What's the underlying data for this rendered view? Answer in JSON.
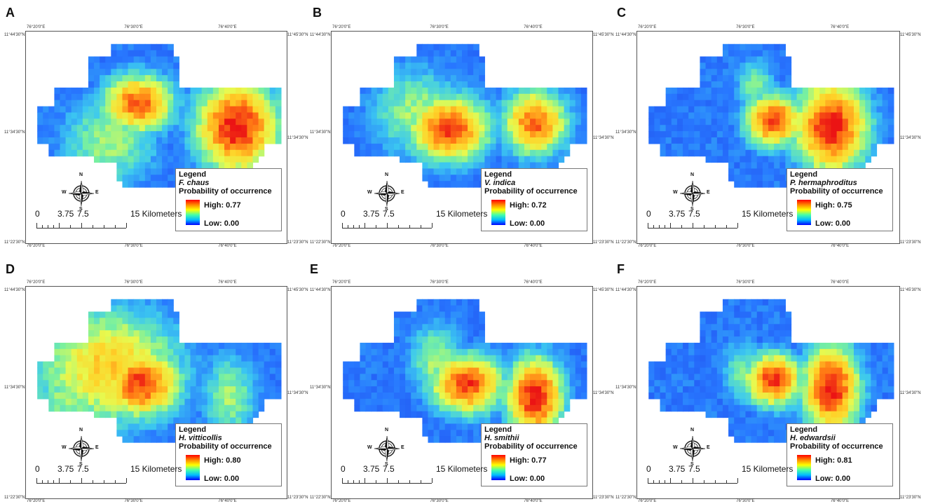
{
  "panels": [
    {
      "letter": "A",
      "species": "F. chaus",
      "high": "High: 0.77",
      "low": "Low:  0.00",
      "hot": [
        [
          0.43,
          0.34,
          0.09,
          0.09,
          0.9
        ],
        [
          0.81,
          0.45,
          0.1,
          0.14,
          1.0
        ],
        [
          0.32,
          0.52,
          0.12,
          0.14,
          0.55
        ]
      ]
    },
    {
      "letter": "B",
      "species": "V. indica",
      "high": "High: 0.72",
      "low": "Low:  0.00",
      "hot": [
        [
          0.45,
          0.46,
          0.1,
          0.1,
          0.95
        ],
        [
          0.78,
          0.43,
          0.08,
          0.1,
          0.9
        ],
        [
          0.33,
          0.38,
          0.12,
          0.14,
          0.55
        ]
      ]
    },
    {
      "letter": "C",
      "species": "P. hermaphroditus",
      "high": "High: 0.75",
      "low": "Low:  0.00",
      "hot": [
        [
          0.52,
          0.42,
          0.07,
          0.08,
          0.95
        ],
        [
          0.74,
          0.45,
          0.09,
          0.14,
          1.0
        ],
        [
          0.45,
          0.25,
          0.05,
          0.08,
          0.5
        ]
      ]
    },
    {
      "letter": "D",
      "species": "H. vitticollis",
      "high": "High: 0.80",
      "low": "Low:  0.00",
      "hot": [
        [
          0.44,
          0.46,
          0.1,
          0.1,
          0.95
        ],
        [
          0.32,
          0.38,
          0.18,
          0.18,
          0.75
        ],
        [
          0.17,
          0.53,
          0.1,
          0.13,
          0.55
        ],
        [
          0.78,
          0.52,
          0.07,
          0.13,
          0.55
        ]
      ]
    },
    {
      "letter": "E",
      "species": "H. smithii",
      "high": "High: 0.77",
      "low": "Low:  0.00",
      "hot": [
        [
          0.52,
          0.46,
          0.09,
          0.09,
          0.95
        ],
        [
          0.78,
          0.52,
          0.07,
          0.12,
          1.0
        ],
        [
          0.4,
          0.35,
          0.07,
          0.12,
          0.55
        ]
      ]
    },
    {
      "letter": "F",
      "species": "H. edwardsii",
      "high": "High: 0.81",
      "low": "Low:  0.00",
      "hot": [
        [
          0.52,
          0.44,
          0.07,
          0.08,
          0.95
        ],
        [
          0.74,
          0.48,
          0.07,
          0.13,
          1.0
        ],
        [
          0.4,
          0.4,
          0.05,
          0.1,
          0.5
        ]
      ]
    }
  ],
  "common": {
    "legend_title": "Legend",
    "prob_label": "Probability of occurrence",
    "compass": {
      "n": "N",
      "s": "S",
      "e": "E",
      "w": "W"
    },
    "scale": {
      "s0": "0",
      "s1": "3.75",
      "s2": "7.5",
      "s3": "15 Kilometers"
    },
    "top_lon": [
      "76°20'0\"E",
      "76°30'0\"E",
      "76°40'0\"E"
    ],
    "bottom_lon": [
      "76°20'0\"E",
      "76°30'0\"E",
      "76°40'0\"E"
    ],
    "left_lat": [
      "11°44'30\"N",
      "11°34'30\"N",
      "11°22'30\"N"
    ],
    "right_lat": [
      "11°45'30\"N",
      "11°34'30\"N",
      "11°23'30\"N"
    ]
  }
}
